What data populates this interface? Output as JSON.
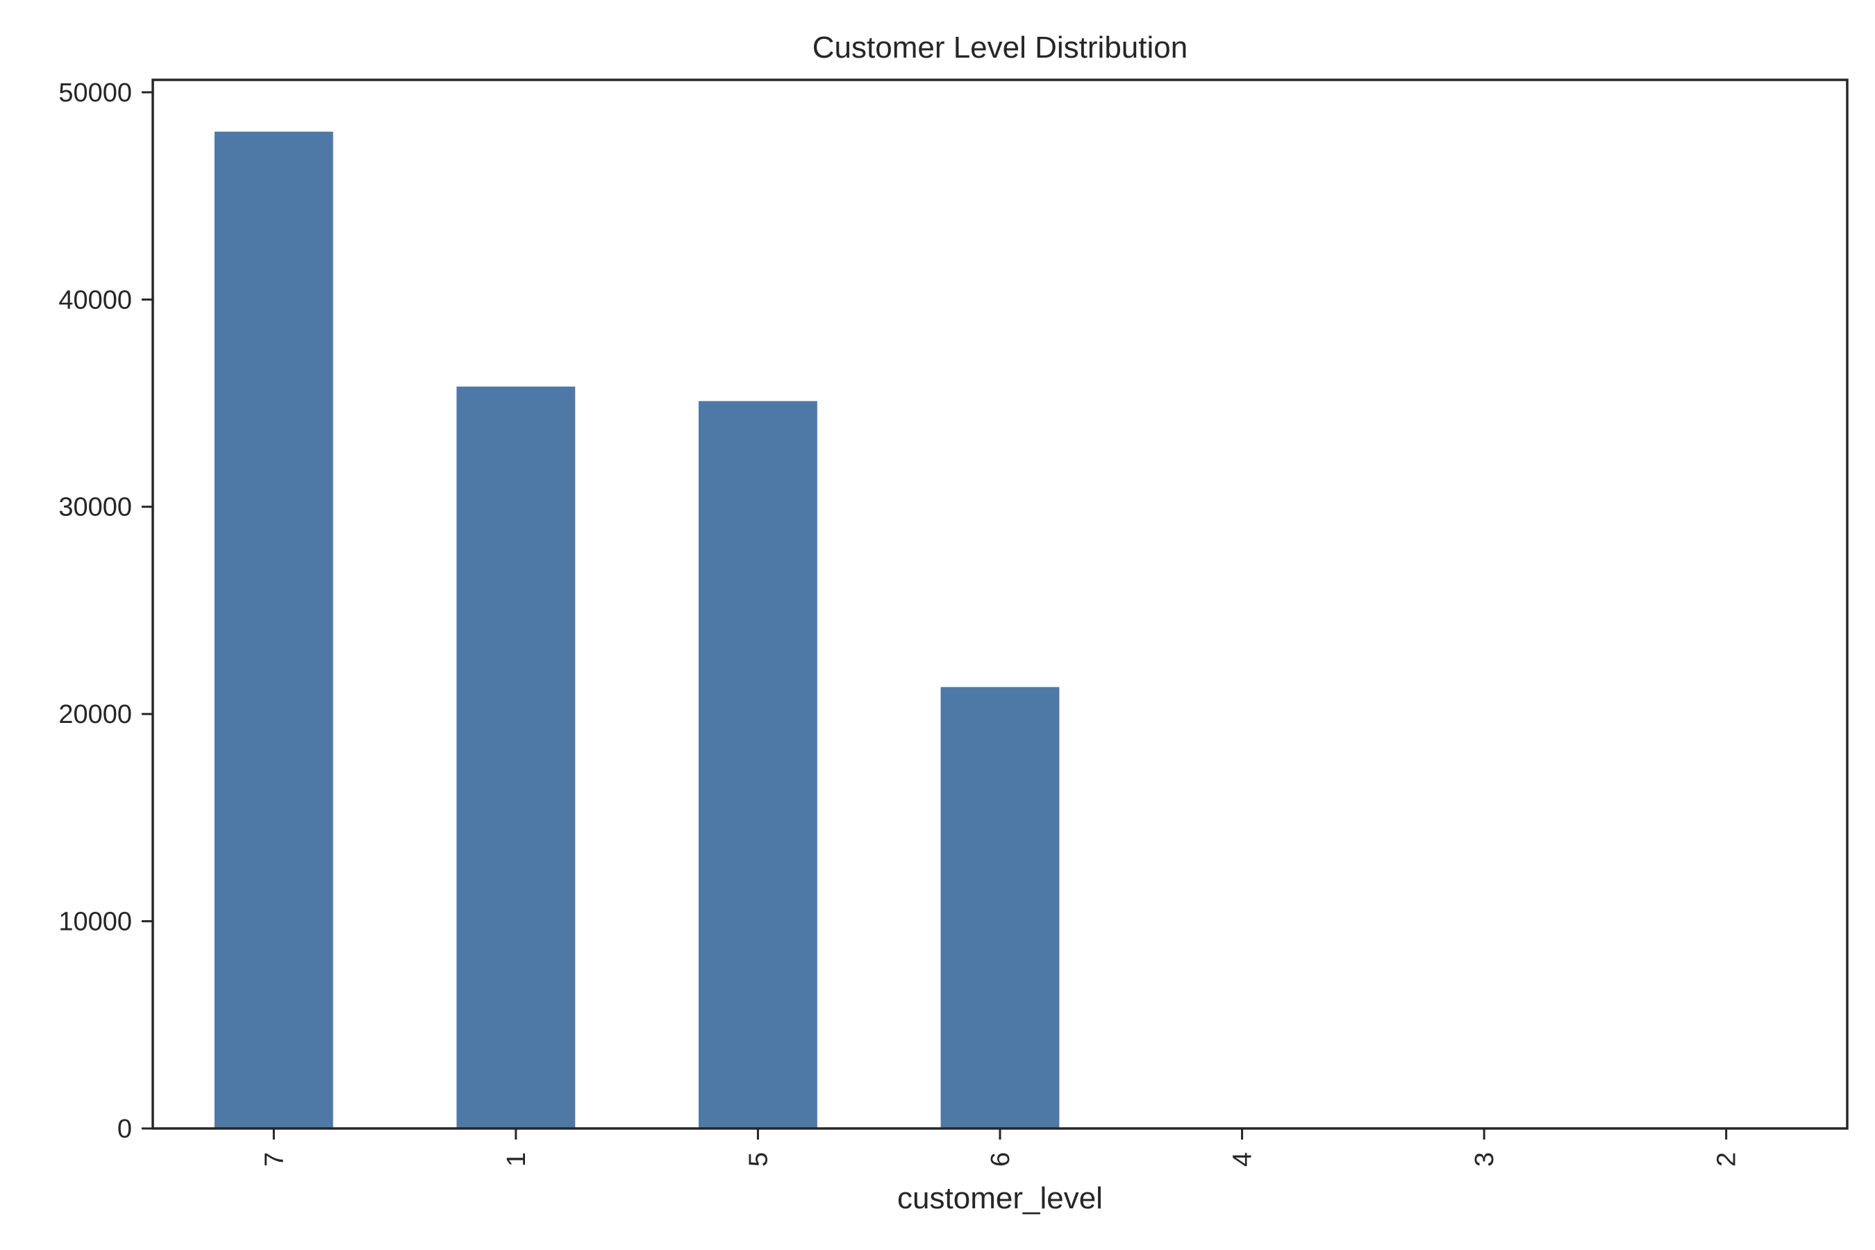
{
  "chart_data": {
    "type": "bar",
    "title": "Customer Level Distribution",
    "xlabel": "customer_level",
    "ylabel": "",
    "categories": [
      "7",
      "1",
      "5",
      "6",
      "4",
      "3",
      "2"
    ],
    "values": [
      48100,
      35800,
      35100,
      21300,
      0,
      0,
      0
    ],
    "ylim": [
      0,
      50600
    ],
    "yticks": [
      "0",
      "10000",
      "20000",
      "30000",
      "40000",
      "50000"
    ],
    "ytick_values": [
      0,
      10000,
      20000,
      30000,
      40000,
      50000
    ],
    "grid": false,
    "legend": "none",
    "bar_color": "#4e79a7",
    "axis_color": "#262626"
  }
}
